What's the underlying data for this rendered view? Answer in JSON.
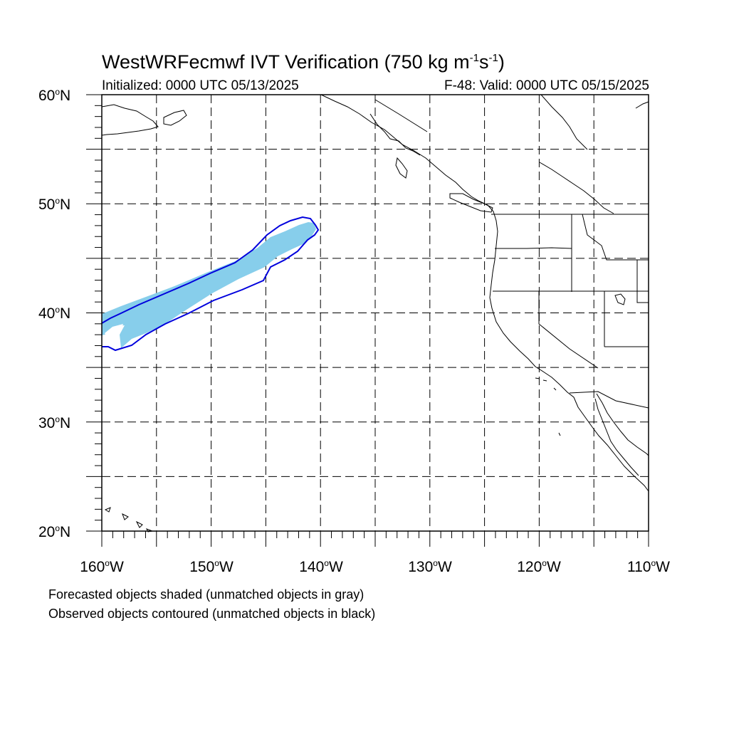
{
  "map": {
    "title_main": "WestWRFecmwf IVT Verification (750 kg m",
    "title_exp1": "-1",
    "title_mid": "s",
    "title_exp2": "-1",
    "title_end": ")",
    "initialized": "Initialized: 0000 UTC 05/13/2025",
    "valid": "F-48: Valid: 0000 UTC 05/15/2025",
    "lat_labels": [
      "60",
      "50",
      "40",
      "30",
      "20"
    ],
    "lat_suffix": "N",
    "lon_labels": [
      "160",
      "150",
      "140",
      "130",
      "120",
      "110"
    ],
    "lon_suffix": "W",
    "lat_range": [
      20,
      60
    ],
    "lon_range": [
      -160,
      -110
    ],
    "grid_style": "dashed every 5 degrees",
    "footnote_forecast": "Forecasted objects shaded (unmatched objects in gray)",
    "footnote_observed": "Observed objects contoured (unmatched objects in black)",
    "colors": {
      "forecast_fill": "#87ceeb",
      "observed_contour": "#0000dd",
      "coastline": "#000000",
      "grid": "#000000"
    }
  }
}
